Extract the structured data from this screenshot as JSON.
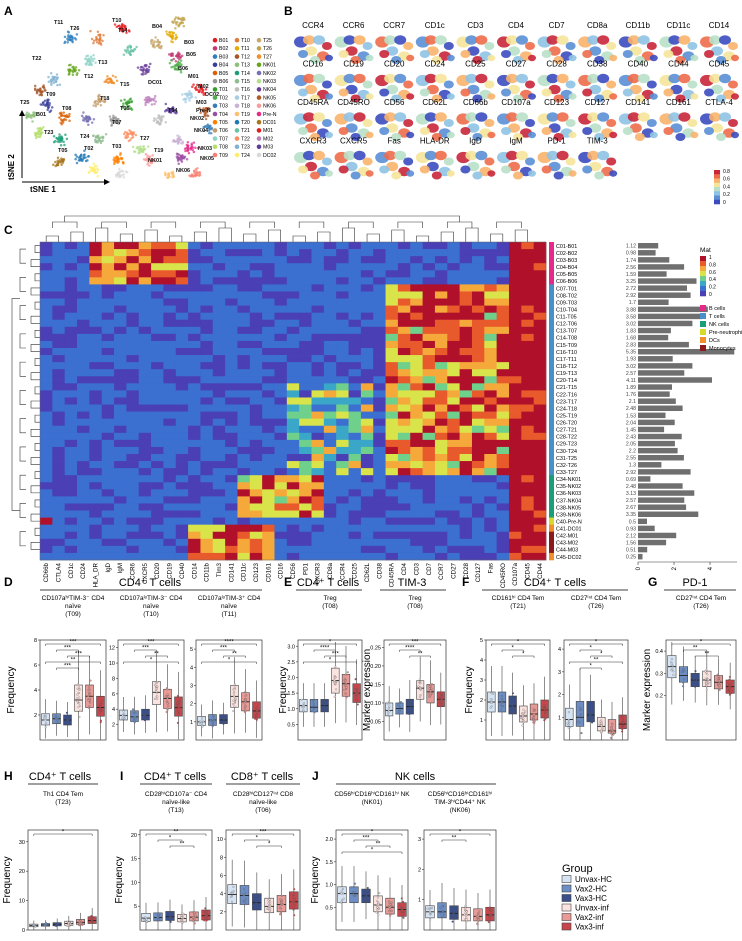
{
  "panels": {
    "A": {
      "letter": "A",
      "axis_y": "tSNE 2",
      "axis_x": "tSNE 1",
      "cluster_labels": [
        "B01",
        "T10",
        "T25",
        "B02",
        "T11",
        "T26",
        "B03",
        "T12",
        "T27",
        "B04",
        "T13",
        "NK01",
        "B05",
        "T14",
        "NK02",
        "B06",
        "T15",
        "NK03",
        "T01",
        "T16",
        "NK04",
        "T02",
        "T17",
        "NK05",
        "T03",
        "T18",
        "NK06",
        "T04",
        "T19",
        "Pre-N",
        "T05",
        "T20",
        "DC01",
        "T06",
        "T21",
        "M01",
        "T07",
        "T22",
        "M02",
        "T08",
        "T23",
        "M03",
        "T09",
        "T24",
        "DC02"
      ],
      "legend_colors": [
        "#e41a1c",
        "#e07b39",
        "#c7a76c",
        "#c23a72",
        "#e6ab02",
        "#bfa34a",
        "#2d7fbf",
        "#a65628",
        "#f28e2b",
        "#3a3f9b",
        "#8ec07c",
        "#66a61e",
        "#d95f02",
        "#1b9e77",
        "#7570b3",
        "#999999",
        "#8fbc8f",
        "#b2df8a",
        "#33a02c",
        "#bfbfbf",
        "#6a3d9a",
        "#4daf4a",
        "#a6cee3",
        "#b15928",
        "#377eb8",
        "#cab2d6",
        "#fb9a99",
        "#984ea3",
        "#fdbf6f",
        "#e7298a",
        "#ff7f00",
        "#1f78b4",
        "#a6761d",
        "#c49c6b",
        "#66c2a5",
        "#e31a1c",
        "#8dd3c7",
        "#fc8d62",
        "#bc80bd",
        "#b3de69",
        "#80b1d3",
        "#5c3d99",
        "#fb8072",
        "#ffed6f",
        "#d9d9d9"
      ],
      "map_labels": [
        "T11",
        "T10",
        "T14",
        "B04",
        "B03",
        "B05",
        "T26",
        "T22",
        "T12",
        "T09",
        "T25",
        "T13",
        "B01",
        "T23",
        "T06",
        "T05",
        "T18",
        "T27",
        "T07",
        "T02",
        "DC01",
        "M01",
        "M02",
        "M03",
        "T04",
        "T15",
        "T19",
        "T03",
        "T24",
        "T08",
        "NK02",
        "NK04",
        "NK03",
        "NK01",
        "NK05",
        "NK06",
        "B06",
        "Pre-N",
        "DC02"
      ]
    },
    "B": {
      "letter": "B",
      "markers": [
        "CCR4",
        "CCR6",
        "CCR7",
        "CD1c",
        "CD3",
        "CD4",
        "CD7",
        "CD8a",
        "CD11b",
        "CD11c",
        "CD14",
        "CD16",
        "CD19",
        "CD20",
        "CD24",
        "CD25",
        "CD27",
        "CD28",
        "CD38",
        "CD40",
        "CD44",
        "CD45",
        "CD45RA",
        "CD45RO",
        "CD56",
        "CD62L",
        "CD66b",
        "CD107a",
        "CD123",
        "CD127",
        "CD141",
        "CD161",
        "CTLA-4",
        "CXCR3",
        "CXCR5",
        "Fas",
        "HLA-DR",
        "IgD",
        "IgM",
        "PD-1",
        "TIM-3"
      ],
      "colorbar_ticks": [
        "0.8",
        "0.6",
        "0.4",
        "0.2",
        "0"
      ]
    },
    "C": {
      "letter": "C",
      "legend_title": "Mat",
      "mat_ticks": [
        "1",
        "0.8",
        "0.6",
        "0.4",
        "0.2",
        "0"
      ],
      "lineages": [
        "B cells",
        "T cells",
        "NK cells",
        "Pre-neutrophils",
        "DCs",
        "Monocytes"
      ],
      "lineage_colors": [
        "#e7298a",
        "#4a90c8",
        "#1b9e77",
        "#d9d92a",
        "#f28e2b",
        "#8b1a1a"
      ],
      "columns": [
        "CD66b",
        "CTLA4",
        "CD1c",
        "CD24",
        "HLA_DR",
        "IgD",
        "IgM",
        "CCR6",
        "CXCR5",
        "CD20",
        "CD19",
        "CD40",
        "CD14",
        "CD11b",
        "TIm3",
        "CD141",
        "CD11c",
        "CD123",
        "CD161",
        "CD16",
        "CD56",
        "PD1",
        "CXCR3",
        "CD8a",
        "CCR4",
        "CD25",
        "CD62L",
        "CD38",
        "CD45RA",
        "CD4",
        "CD3",
        "CD7",
        "CCR7",
        "CD27",
        "CD28",
        "CD127",
        "Fas",
        "CD45RO",
        "CD107a",
        "CD45",
        "CD44"
      ],
      "rows": [
        "C01-B01",
        "C02-B02",
        "C03-B03",
        "C04-B04",
        "C05-B05",
        "C06-B06",
        "C07-T01",
        "C08-T02",
        "C09-T03",
        "C10-T04",
        "C11-T05",
        "C12-T06",
        "C13-T07",
        "C14-T08",
        "C15-T09",
        "C16-T10",
        "C17-T11",
        "C18-T12",
        "C19-T13",
        "C20-T14",
        "C21-T15",
        "C22-T16",
        "C23-T17",
        "C24-T18",
        "C25-T19",
        "C26-T20",
        "C27-T21",
        "C28-T22",
        "C29-T23",
        "C30-T24",
        "C31-T25",
        "C32-T26",
        "C33-T27",
        "C34-NK01",
        "C35-NK02",
        "C36-NK03",
        "C37-NK04",
        "C38-NK05",
        "C39-NK06",
        "C40-Pre-N",
        "C41-DC01",
        "C42-M01",
        "C43-M02",
        "C44-M03",
        "C45-DC02"
      ],
      "row_lineage": [
        0,
        0,
        0,
        0,
        0,
        0,
        1,
        1,
        1,
        1,
        1,
        1,
        1,
        1,
        1,
        1,
        1,
        1,
        1,
        1,
        1,
        1,
        1,
        1,
        1,
        1,
        1,
        1,
        1,
        1,
        1,
        1,
        1,
        2,
        2,
        2,
        2,
        2,
        2,
        3,
        4,
        5,
        5,
        5,
        4
      ],
      "bar_values": [
        1.12,
        0.98,
        1.74,
        2.56,
        1.59,
        3.25,
        2.72,
        2.92,
        1.7,
        3.88,
        3.58,
        3.02,
        1.83,
        1.68,
        2.83,
        5.35,
        1.93,
        3.02,
        2.57,
        4.11,
        1.89,
        1.76,
        2.1,
        2.48,
        1.53,
        2.04,
        1.45,
        2.43,
        2.05,
        2.2,
        2.55,
        1.3,
        2.92,
        0.69,
        2.48,
        3.13,
        2.57,
        2.67,
        3.35,
        0.5,
        0.93,
        2.12,
        1.56,
        0.51,
        0.25
      ],
      "bar_value_labels": [
        "1.12",
        "0.98",
        "1.74",
        "2.56",
        "1.59",
        "3.25",
        "2.72",
        "2.92",
        "1.7",
        "3.88",
        "3.58",
        "3.02",
        "1.83",
        "1.68",
        "2.83",
        "5.35",
        "1.93",
        "3.02",
        "2.57",
        "4.11",
        "1.89",
        "1.76",
        "2.1",
        "2.48",
        "1.53",
        "2.04",
        "1.45",
        "2.43",
        "2.05",
        "2.2",
        "2.55",
        "1.3",
        "2.92",
        "0.69",
        "2.48",
        "3.13",
        "2.57",
        "2.67",
        "3.35",
        "0.5",
        "0.93",
        "2.12",
        "1.56",
        "0.51",
        "0.25"
      ],
      "bar_axis_ticks": [
        "0",
        "2",
        "4"
      ]
    },
    "D": {
      "letter": "D",
      "title": "CD4⁺ T cells",
      "ylabel": "Frequency",
      "subplots": [
        {
          "label": "CD107aʰⁱTIM-3⁻ CD4 naïve",
          "code": "(T09)",
          "ticks": [
            "2",
            "4",
            "6",
            "8"
          ],
          "ymax": 8,
          "medians": [
            1.6,
            1.7,
            1.6,
            3.2,
            3.5,
            2.6
          ],
          "q1": [
            1.2,
            1.3,
            1.2,
            2.3,
            2.6,
            1.9
          ],
          "q3": [
            2.1,
            2.1,
            2.0,
            4.4,
            4.4,
            3.5
          ],
          "stars": [
            "***",
            "***",
            "***",
            "**",
            "***"
          ]
        },
        {
          "label": "CD107aˡᵒTIM-3⁻ CD4 naïve",
          "code": "(T10)",
          "ticks": [
            "2",
            "4",
            "6",
            "8",
            "10",
            "12"
          ],
          "ymax": 13,
          "medians": [
            3.2,
            3.0,
            3.2,
            6.2,
            5.4,
            4.2
          ],
          "q1": [
            2.6,
            2.4,
            2.6,
            4.6,
            4.1,
            3.1
          ],
          "q3": [
            3.9,
            3.8,
            4.0,
            7.6,
            6.6,
            5.6
          ],
          "stars": [
            "***",
            "***",
            "**",
            "*"
          ]
        },
        {
          "label": "CD107aˡᵒTIM-3⁺ CD4 naïve",
          "code": "(T11)",
          "ticks": [
            "1",
            "2",
            "3",
            "4",
            "5"
          ],
          "ymax": 5.5,
          "medians": [
            1.0,
            1.1,
            1.1,
            2.4,
            2.1,
            1.6
          ],
          "q1": [
            0.8,
            0.8,
            0.9,
            1.8,
            1.6,
            1.2
          ],
          "q3": [
            1.3,
            1.4,
            1.4,
            3.0,
            2.6,
            2.1
          ],
          "stars": [
            "****",
            "***",
            "**",
            "*"
          ]
        }
      ]
    },
    "E": {
      "letter": "E",
      "title_left": "CD4⁺ T cells",
      "title_right": "TIM-3",
      "ylabel_left": "Frequency",
      "ylabel_right": "Marker expression",
      "subplots": [
        {
          "label": "Treg",
          "code": "(T08)",
          "ticks": [
            "0.5",
            "1.0",
            "1.5",
            "2.0",
            "2.5",
            "3.0"
          ],
          "ymax": 3.2,
          "medians": [
            1.1,
            1.05,
            1.1,
            1.9,
            1.8,
            1.5
          ],
          "q1": [
            0.9,
            0.9,
            0.9,
            1.5,
            1.4,
            1.2
          ],
          "q3": [
            1.3,
            1.3,
            1.3,
            2.3,
            2.1,
            1.8
          ],
          "stars": [
            "*",
            "****",
            "***",
            "*"
          ]
        },
        {
          "label": "Treg",
          "code": "(T08)",
          "ticks": [
            "0.05",
            "0.10",
            "0.15",
            "0.20",
            "0.25"
          ],
          "ymax": 0.27,
          "medians": [
            0.08,
            0.085,
            0.09,
            0.14,
            0.13,
            0.11
          ],
          "q1": [
            0.065,
            0.07,
            0.07,
            0.11,
            0.1,
            0.09
          ],
          "q3": [
            0.1,
            0.1,
            0.11,
            0.16,
            0.15,
            0.13
          ],
          "stars": [
            "***",
            "****",
            "**"
          ]
        }
      ]
    },
    "F": {
      "letter": "F",
      "title": "CD4⁺ T cells",
      "ylabel": "Frequency",
      "subplots": [
        {
          "label": "CD161ʰⁱ CD4 Tem",
          "code": "(T21)",
          "ticks": [
            "1",
            "2",
            "3",
            "4",
            "5"
          ],
          "ymax": 5,
          "medians": [
            1.9,
            1.9,
            1.7,
            1.2,
            1.3,
            1.5
          ],
          "q1": [
            1.4,
            1.4,
            1.3,
            0.9,
            1.0,
            1.1
          ],
          "q3": [
            2.4,
            2.4,
            2.2,
            1.7,
            1.8,
            2.0
          ],
          "stars": [
            "*",
            "*",
            "*"
          ]
        },
        {
          "label": "CD27ⁱⁿᵗ CD4 Tem",
          "code": "(T26)",
          "ticks": [
            "1",
            "2",
            "3",
            "4"
          ],
          "ymax": 4.4,
          "medians": [
            0.9,
            1.0,
            1.1,
            0.6,
            0.4,
            0.7
          ],
          "q1": [
            0.6,
            0.6,
            0.8,
            0.4,
            0.3,
            0.5
          ],
          "q3": [
            1.4,
            1.7,
            1.7,
            1.0,
            0.9,
            1.1
          ],
          "stars": [
            "*",
            "*",
            "*",
            "**",
            "*"
          ]
        }
      ]
    },
    "G": {
      "letter": "G",
      "title": "PD-1",
      "ylabel": "Marker expression",
      "subplots": [
        {
          "label": "CD27ⁱⁿᵗ CD4 Tem",
          "code": "(T26)",
          "ticks": [
            "0.2",
            "0.3",
            "0.4"
          ],
          "ymax": 0.45,
          "medians": [
            0.33,
            0.29,
            0.27,
            0.27,
            0.26,
            0.24
          ],
          "q1": [
            0.28,
            0.26,
            0.24,
            0.24,
            0.23,
            0.21
          ],
          "q3": [
            0.38,
            0.33,
            0.3,
            0.31,
            0.29,
            0.27
          ],
          "stars": [
            "*",
            "**",
            "**"
          ]
        }
      ]
    },
    "H": {
      "letter": "H",
      "title": "CD4⁺ T cells",
      "ylabel": "Frequency",
      "subplots": [
        {
          "label": "Th1 CD4 Tem",
          "code": "(T23)",
          "ticks": [
            "0",
            "10",
            "20",
            "30"
          ],
          "ymax": 34,
          "medians": [
            1.5,
            1.7,
            1.9,
            2.2,
            2.6,
            3.2
          ],
          "q1": [
            1.1,
            1.3,
            1.4,
            1.6,
            1.9,
            2.2
          ],
          "q3": [
            2.0,
            2.2,
            2.5,
            3.0,
            3.6,
            4.5
          ],
          "stars": [
            "*"
          ]
        }
      ]
    },
    "I": {
      "letter": "I",
      "title_left": "CD4⁺ T cells",
      "title_right": "CD8⁺ T cells",
      "ylabel": "Frequency",
      "subplots": [
        {
          "label": "CD28ʰⁱCD107a⁻ CD4 naïve-like",
          "code": "(T13)",
          "ticks": [
            "5",
            "10",
            "15",
            "20"
          ],
          "ymax": 21,
          "medians": [
            2.5,
            2.6,
            2.8,
            2.4,
            2.7,
            3.0
          ],
          "q1": [
            1.8,
            1.9,
            2.0,
            1.7,
            1.9,
            2.1
          ],
          "q3": [
            3.5,
            3.6,
            3.9,
            3.3,
            3.8,
            4.2
          ],
          "stars": [
            "**",
            "*",
            "**"
          ]
        },
        {
          "label": "CD28ʰⁱCD127ⁱⁿᵗ CD8 naïve-like",
          "code": "(T06)",
          "ticks": [
            "2",
            "4",
            "6",
            "8",
            "10"
          ],
          "ymax": 11,
          "medians": [
            3.9,
            3.8,
            3.0,
            2.6,
            2.8,
            3.1
          ],
          "q1": [
            2.9,
            2.8,
            2.2,
            1.9,
            2.0,
            2.3
          ],
          "q3": [
            5.0,
            4.9,
            4.0,
            3.5,
            3.8,
            4.2
          ],
          "stars": [
            "***",
            "*",
            "*"
          ]
        }
      ]
    },
    "J": {
      "letter": "J",
      "title": "NK cells",
      "ylabel": "Frequency",
      "subplots": [
        {
          "label": "CD56ʰⁱCD16ʰⁱCD161ʰⁱ NK",
          "code": "(NK01)",
          "ticks": [
            "0.5",
            "1.0",
            "1.5",
            "2.0"
          ],
          "ymax": 2.2,
          "medians": [
            0.8,
            0.8,
            0.75,
            0.55,
            0.5,
            0.45
          ],
          "q1": [
            0.6,
            0.6,
            0.6,
            0.4,
            0.35,
            0.3
          ],
          "q3": [
            0.95,
            0.95,
            0.9,
            0.75,
            0.7,
            0.6
          ],
          "stars": [
            "*",
            "***",
            "**",
            "*"
          ]
        },
        {
          "label": "CD56ʰⁱCD16ʰⁱCD161ʰⁱ TIM-3ʰⁱCD44⁺ NK",
          "code": "(NK06)",
          "ticks": [
            "1",
            "2",
            "3"
          ],
          "ymax": 3.3,
          "medians": [
            0.6,
            0.6,
            0.55,
            0.5,
            0.45,
            0.5
          ],
          "q1": [
            0.4,
            0.4,
            0.35,
            0.3,
            0.3,
            0.3
          ],
          "q3": [
            0.8,
            0.9,
            0.8,
            0.75,
            0.7,
            0.75
          ],
          "stars": [
            "*",
            "**"
          ]
        }
      ]
    },
    "legend": {
      "title": "Group",
      "items": [
        "Unvax-HC",
        "Vax2-HC",
        "Vax3-HC",
        "Unvax-inf",
        "Vax2-inf",
        "Vax3-inf"
      ],
      "colors": [
        "#d6e3f2",
        "#6d8ec4",
        "#3a4f8a",
        "#fbe3e0",
        "#e79a96",
        "#c8464b"
      ]
    }
  }
}
